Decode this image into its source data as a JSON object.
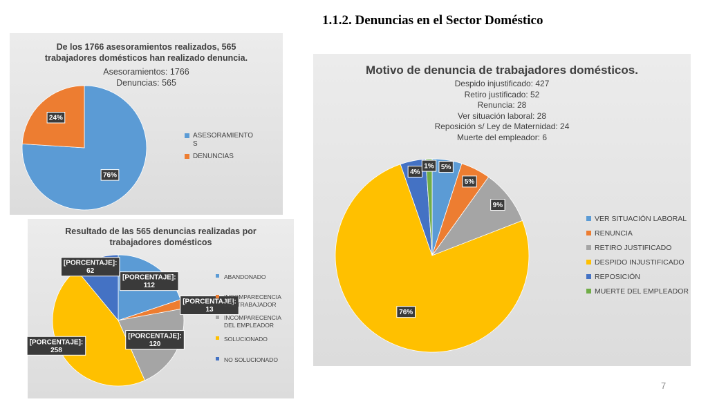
{
  "slide": {
    "title": "1.1.2. Denuncias en el Sector Doméstico",
    "page_number": "7"
  },
  "chart_data": [
    {
      "type": "pie",
      "title": "De los 1766 asesoramientos realizados, 565 trabajadores domésticos han realizado denuncia.",
      "subtitle_lines": [
        "Asesoramientos: 1766",
        "Denuncias:  565"
      ],
      "categories": [
        "ASESORAMIENTOS",
        "DENUNCIAS"
      ],
      "values": [
        76,
        24
      ],
      "data_labels": [
        "76%",
        "24%"
      ],
      "colors": [
        "#5b9bd5",
        "#ed7d31"
      ],
      "legend": "right"
    },
    {
      "type": "pie",
      "title": "Resultado de las 565 denuncias realizadas por trabajadores domésticos",
      "categories": [
        "ABANDONADO",
        "INCOMPARECENCIA DEL TRABAJADOR",
        "INCOMPARECENCIA DEL EMPLEADOR",
        "SOLUCIONADO",
        "NO SOLUCIONADO"
      ],
      "values": [
        112,
        13,
        120,
        258,
        62
      ],
      "label_prefix": "[PORCENTAJE]:",
      "colors": [
        "#5b9bd5",
        "#ed7d31",
        "#a5a5a5",
        "#ffc000",
        "#4472c4"
      ],
      "legend": "right"
    },
    {
      "type": "pie",
      "title": "Motivo de denuncia de trabajadores domésticos.",
      "subtitle_lines": [
        "Despido injustificado: 427",
        "Retiro justificado: 52",
        "Renuncia: 28",
        "Ver situación laboral: 28",
        "Reposición s/ Ley de Maternidad: 24",
        "Muerte del empleador: 6"
      ],
      "categories": [
        "VER SITUACIÓN LABORAL",
        "RENUNCIA",
        "RETIRO JUSTIFICADO",
        "DESPIDO INJUSTIFICADO",
        "REPOSICIÓN",
        "MUERTE DEL EMPLEADOR"
      ],
      "values": [
        28,
        28,
        52,
        427,
        24,
        6
      ],
      "data_labels": [
        "5%",
        "5%",
        "9%",
        "76%",
        "4%",
        "1%"
      ],
      "colors": [
        "#5b9bd5",
        "#ed7d31",
        "#a5a5a5",
        "#ffc000",
        "#4472c4",
        "#70ad47"
      ],
      "legend": "right"
    }
  ]
}
